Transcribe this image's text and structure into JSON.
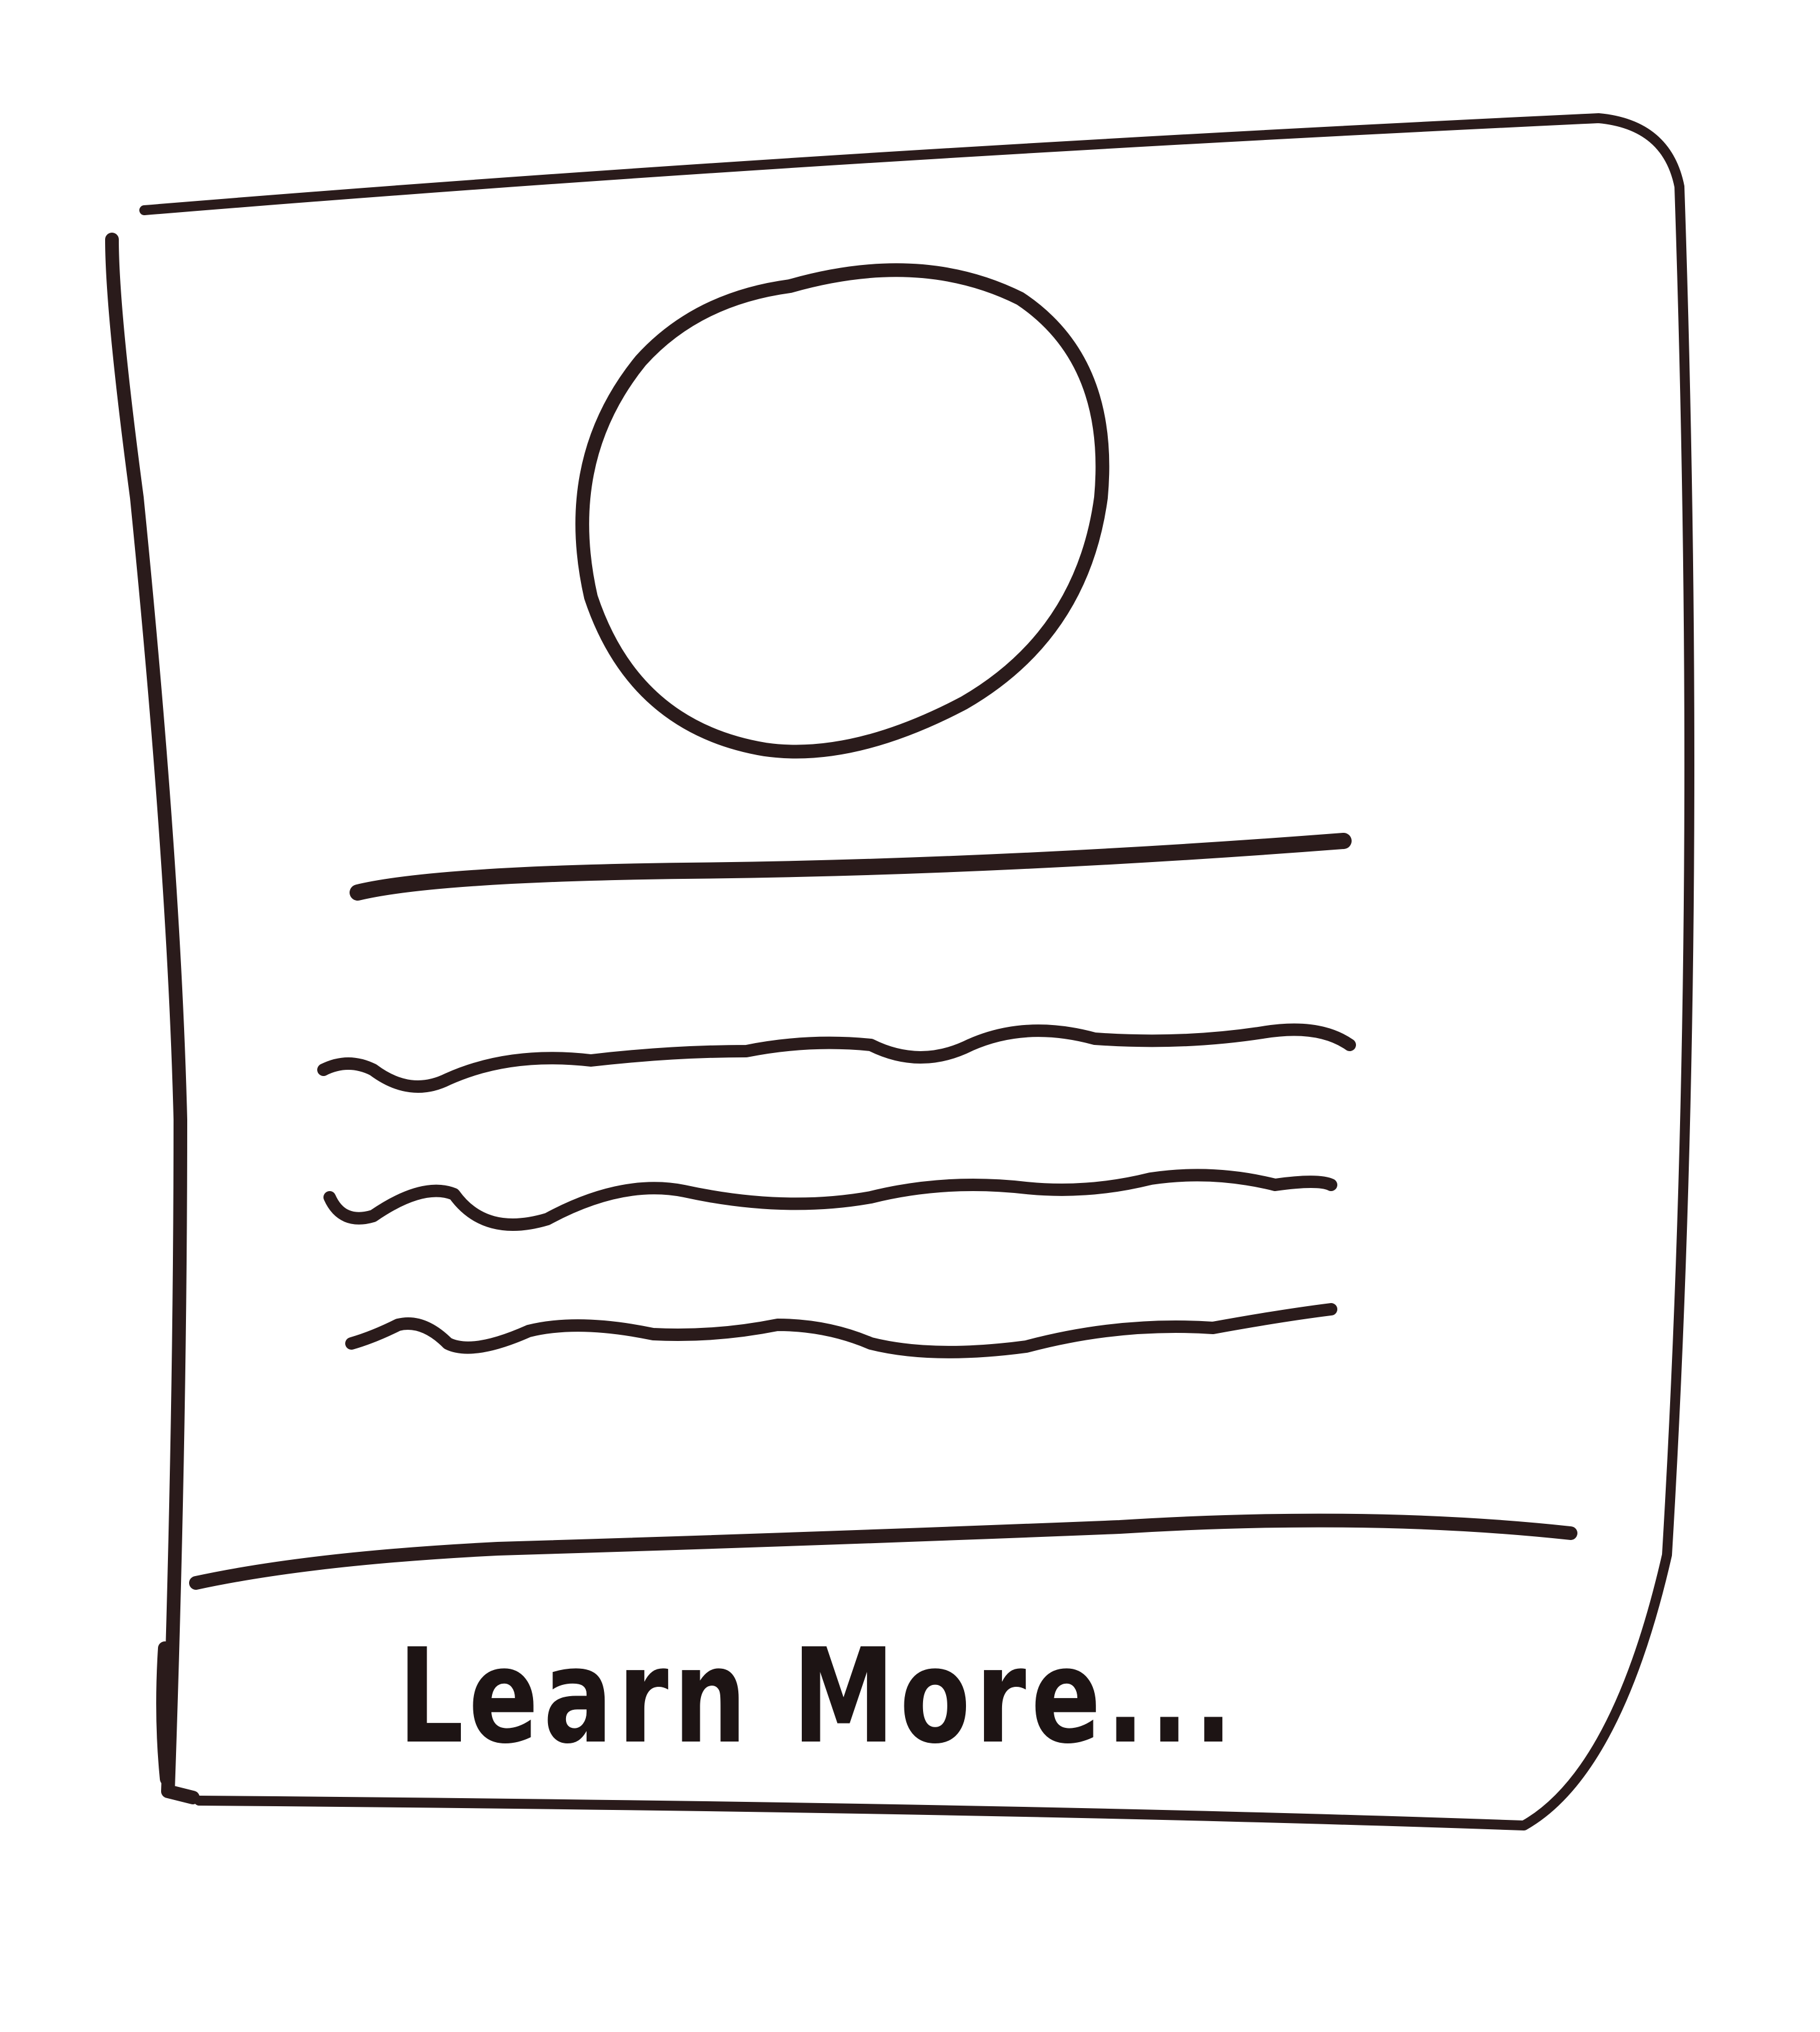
{
  "card": {
    "cta_label": "Learn More..."
  },
  "colors": {
    "ink": "#2a1b1b",
    "paper": "#ffffff"
  }
}
